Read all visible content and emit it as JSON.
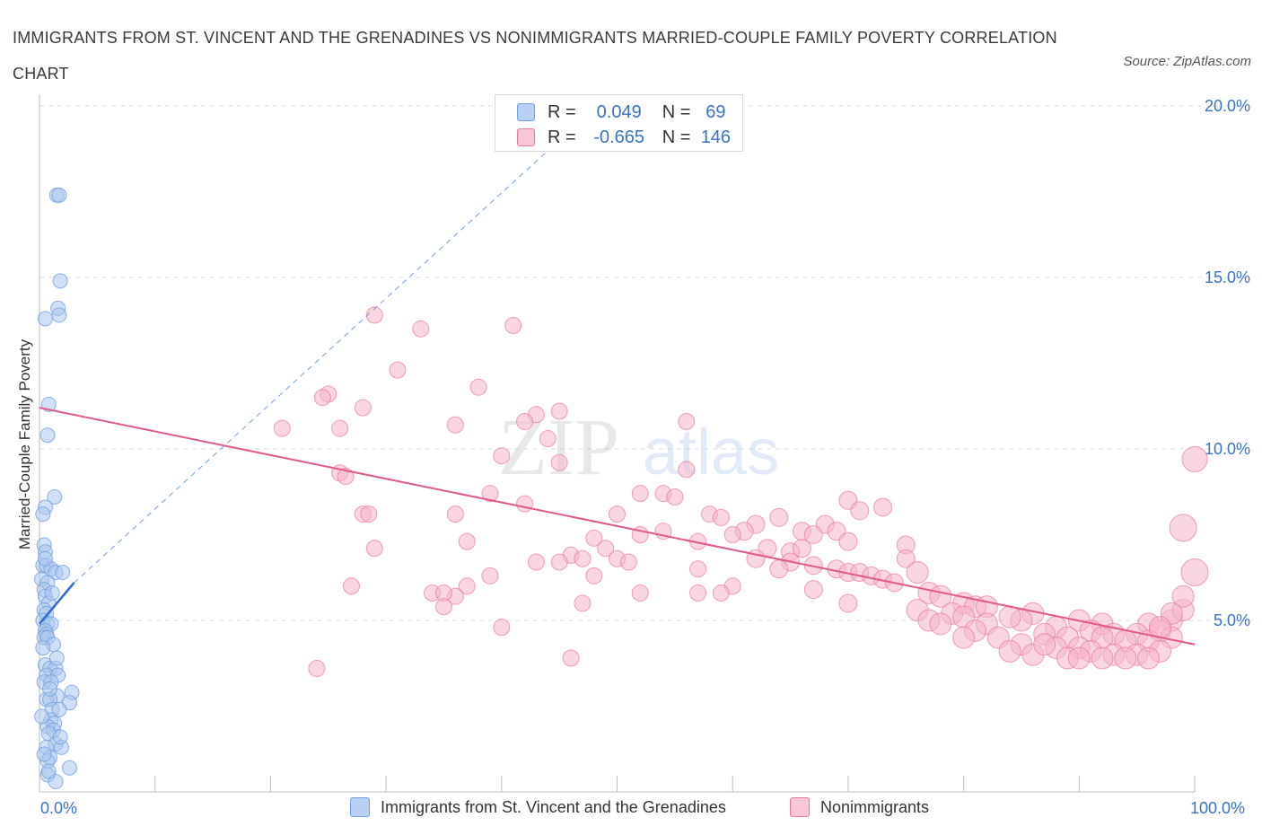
{
  "title": "IMMIGRANTS FROM ST. VINCENT AND THE GRENADINES VS NONIMMIGRANTS MARRIED-COUPLE FAMILY POVERTY CORRELATION CHART",
  "source": "Source: ZipAtlas.com",
  "watermark": {
    "zip": "ZIP",
    "atlas": "atlas"
  },
  "legend": {
    "row1": {
      "r_label": "R =",
      "r_value": "0.049",
      "n_label": "N =",
      "n_value": "69"
    },
    "row2": {
      "r_label": "R =",
      "r_value": "-0.665",
      "n_label": "N =",
      "n_value": "146"
    }
  },
  "bottom_legend": {
    "series1": "Immigrants from St. Vincent and the Grenadines",
    "series2": "Nonimmigrants"
  },
  "x_axis": {
    "min_label": "0.0%",
    "max_label": "100.0%"
  },
  "y_axis": {
    "label": "Married-Couple Family Poverty"
  },
  "colors": {
    "blue": "#6f9fe0",
    "blue_fill": "#a9c6ef",
    "pink": "#e8789c",
    "pink_fill": "#f5b4c9",
    "tick_blue": "#3b73c4"
  },
  "chart_data": {
    "type": "scatter",
    "title": "IMMIGRANTS FROM ST. VINCENT AND THE GRENADINES VS NONIMMIGRANTS MARRIED-COUPLE FAMILY POVERTY CORRELATION CHART",
    "xlabel": "",
    "ylabel": "Married-Couple Family Poverty",
    "xlim": [
      0,
      100
    ],
    "ylim": [
      0,
      20
    ],
    "y_ticks": [
      5,
      10,
      15,
      20
    ],
    "y_tick_labels": [
      "5.0%",
      "10.0%",
      "15.0%",
      "20.0%"
    ],
    "grid": true,
    "series": [
      {
        "name": "Immigrants from St. Vincent and the Grenadines",
        "color": "#6f9fe0",
        "r": 0.049,
        "n": 69,
        "trend": {
          "x": [
            0,
            3
          ],
          "y": [
            4.9,
            6.1
          ]
        },
        "trend_extension": {
          "x": [
            3,
            45
          ],
          "y": [
            6.1,
            19.0
          ]
        },
        "points": [
          [
            1.5,
            17.4
          ],
          [
            1.7,
            17.4
          ],
          [
            1.8,
            14.9
          ],
          [
            1.6,
            14.1
          ],
          [
            1.7,
            13.9
          ],
          [
            0.5,
            13.8
          ],
          [
            0.8,
            11.3
          ],
          [
            0.7,
            10.4
          ],
          [
            1.3,
            8.6
          ],
          [
            0.5,
            8.3
          ],
          [
            0.3,
            8.1
          ],
          [
            0.4,
            7.2
          ],
          [
            0.5,
            7.0
          ],
          [
            0.3,
            6.6
          ],
          [
            0.6,
            6.6
          ],
          [
            1.0,
            6.5
          ],
          [
            1.4,
            6.4
          ],
          [
            2.0,
            6.4
          ],
          [
            0.2,
            6.2
          ],
          [
            0.7,
            6.1
          ],
          [
            0.4,
            5.9
          ],
          [
            0.5,
            5.7
          ],
          [
            0.8,
            5.5
          ],
          [
            0.4,
            5.3
          ],
          [
            0.6,
            5.2
          ],
          [
            0.3,
            5.0
          ],
          [
            0.7,
            4.9
          ],
          [
            1.0,
            4.9
          ],
          [
            0.5,
            4.7
          ],
          [
            0.6,
            4.6
          ],
          [
            0.4,
            4.5
          ],
          [
            0.7,
            4.5
          ],
          [
            1.2,
            4.3
          ],
          [
            0.5,
            3.7
          ],
          [
            0.9,
            3.6
          ],
          [
            1.4,
            3.6
          ],
          [
            0.6,
            3.4
          ],
          [
            1.6,
            3.4
          ],
          [
            0.4,
            3.2
          ],
          [
            1.0,
            3.2
          ],
          [
            2.8,
            2.9
          ],
          [
            1.5,
            2.8
          ],
          [
            0.6,
            2.7
          ],
          [
            0.9,
            2.7
          ],
          [
            2.6,
            2.6
          ],
          [
            1.1,
            2.4
          ],
          [
            1.7,
            2.4
          ],
          [
            1.0,
            2.1
          ],
          [
            1.3,
            2.0
          ],
          [
            0.7,
            1.9
          ],
          [
            1.2,
            1.8
          ],
          [
            0.8,
            1.7
          ],
          [
            1.4,
            1.4
          ],
          [
            0.6,
            1.3
          ],
          [
            1.9,
            1.3
          ],
          [
            0.9,
            1.0
          ],
          [
            0.7,
            0.9
          ],
          [
            2.6,
            0.7
          ],
          [
            0.7,
            0.5
          ],
          [
            1.4,
            0.3
          ],
          [
            0.3,
            4.2
          ],
          [
            0.9,
            3.0
          ],
          [
            1.1,
            5.8
          ],
          [
            0.2,
            2.2
          ],
          [
            1.8,
            1.6
          ],
          [
            0.5,
            6.8
          ],
          [
            1.5,
            3.9
          ],
          [
            0.8,
            0.6
          ],
          [
            0.4,
            1.1
          ]
        ]
      },
      {
        "name": "Nonimmigrants",
        "color": "#e8789c",
        "r": -0.665,
        "n": 146,
        "trend": {
          "x": [
            0,
            100
          ],
          "y": [
            11.2,
            4.3
          ]
        },
        "points": [
          [
            29,
            13.9
          ],
          [
            33,
            13.5
          ],
          [
            41,
            13.6
          ],
          [
            31,
            12.3
          ],
          [
            38,
            11.8
          ],
          [
            25,
            11.6
          ],
          [
            24.5,
            11.5
          ],
          [
            28,
            11.2
          ],
          [
            45,
            11.1
          ],
          [
            43,
            11.0
          ],
          [
            42,
            10.8
          ],
          [
            36,
            10.7
          ],
          [
            21,
            10.6
          ],
          [
            26,
            10.6
          ],
          [
            56,
            10.8
          ],
          [
            44,
            10.3
          ],
          [
            40,
            9.8
          ],
          [
            45,
            9.6
          ],
          [
            56,
            9.4
          ],
          [
            26,
            9.3
          ],
          [
            26.5,
            9.2
          ],
          [
            39,
            8.7
          ],
          [
            52,
            8.7
          ],
          [
            54,
            8.7
          ],
          [
            55,
            8.6
          ],
          [
            70,
            8.5
          ],
          [
            73,
            8.3
          ],
          [
            42,
            8.4
          ],
          [
            71,
            8.2
          ],
          [
            28,
            8.1
          ],
          [
            28.5,
            8.1
          ],
          [
            36,
            8.1
          ],
          [
            50,
            8.1
          ],
          [
            58,
            8.1
          ],
          [
            59,
            8.0
          ],
          [
            64,
            8.0
          ],
          [
            68,
            7.8
          ],
          [
            62,
            7.8
          ],
          [
            69,
            7.6
          ],
          [
            54,
            7.6
          ],
          [
            61,
            7.6
          ],
          [
            66,
            7.6
          ],
          [
            67,
            7.5
          ],
          [
            52,
            7.5
          ],
          [
            60,
            7.5
          ],
          [
            48,
            7.4
          ],
          [
            57,
            7.3
          ],
          [
            70,
            7.3
          ],
          [
            37,
            7.3
          ],
          [
            63,
            7.1
          ],
          [
            29,
            7.1
          ],
          [
            49,
            7.1
          ],
          [
            65,
            7.0
          ],
          [
            75,
            7.2
          ],
          [
            66,
            7.1
          ],
          [
            46,
            6.9
          ],
          [
            62,
            6.8
          ],
          [
            47,
            6.8
          ],
          [
            50,
            6.8
          ],
          [
            75,
            6.8
          ],
          [
            65,
            6.7
          ],
          [
            43,
            6.7
          ],
          [
            45,
            6.7
          ],
          [
            51,
            6.7
          ],
          [
            67,
            6.6
          ],
          [
            57,
            6.5
          ],
          [
            64,
            6.5
          ],
          [
            69,
            6.5
          ],
          [
            70,
            6.4
          ],
          [
            71,
            6.4
          ],
          [
            72,
            6.3
          ],
          [
            73,
            6.2
          ],
          [
            74,
            6.1
          ],
          [
            76,
            6.4
          ],
          [
            39,
            6.3
          ],
          [
            48,
            6.3
          ],
          [
            27,
            6.0
          ],
          [
            37,
            6.0
          ],
          [
            60,
            6.0
          ],
          [
            67,
            5.9
          ],
          [
            57,
            5.8
          ],
          [
            59,
            5.8
          ],
          [
            52,
            5.8
          ],
          [
            34,
            5.8
          ],
          [
            36,
            5.7
          ],
          [
            35,
            5.8
          ],
          [
            77,
            5.8
          ],
          [
            78,
            5.7
          ],
          [
            70,
            5.5
          ],
          [
            47,
            5.5
          ],
          [
            35,
            5.4
          ],
          [
            80,
            5.5
          ],
          [
            81,
            5.4
          ],
          [
            82,
            5.4
          ],
          [
            79,
            5.2
          ],
          [
            76,
            5.3
          ],
          [
            86,
            5.2
          ],
          [
            77,
            5.0
          ],
          [
            80,
            5.1
          ],
          [
            85,
            5.0
          ],
          [
            84,
            5.1
          ],
          [
            90,
            5.0
          ],
          [
            78,
            4.9
          ],
          [
            82,
            4.9
          ],
          [
            88,
            4.8
          ],
          [
            92,
            4.9
          ],
          [
            96,
            4.9
          ],
          [
            98,
            5.0
          ],
          [
            99,
            5.3
          ],
          [
            40,
            4.8
          ],
          [
            81,
            4.7
          ],
          [
            91,
            4.7
          ],
          [
            93,
            4.6
          ],
          [
            95,
            4.6
          ],
          [
            97,
            4.7
          ],
          [
            80,
            4.5
          ],
          [
            83,
            4.5
          ],
          [
            87,
            4.6
          ],
          [
            89,
            4.5
          ],
          [
            92,
            4.5
          ],
          [
            94,
            4.4
          ],
          [
            96,
            4.4
          ],
          [
            98,
            4.5
          ],
          [
            85,
            4.3
          ],
          [
            88,
            4.2
          ],
          [
            90,
            4.2
          ],
          [
            91,
            4.1
          ],
          [
            93,
            4.0
          ],
          [
            95,
            4.0
          ],
          [
            97,
            4.1
          ],
          [
            84,
            4.1
          ],
          [
            86,
            4.0
          ],
          [
            89,
            3.9
          ],
          [
            92,
            3.9
          ],
          [
            94,
            3.9
          ],
          [
            96,
            3.9
          ],
          [
            46,
            3.9
          ],
          [
            24,
            3.6
          ],
          [
            100,
            9.7
          ],
          [
            99,
            7.7
          ],
          [
            100,
            6.4
          ],
          [
            99,
            5.7
          ],
          [
            98,
            5.2
          ],
          [
            97,
            4.8
          ],
          [
            90,
            3.9
          ],
          [
            87,
            4.3
          ]
        ]
      }
    ]
  }
}
